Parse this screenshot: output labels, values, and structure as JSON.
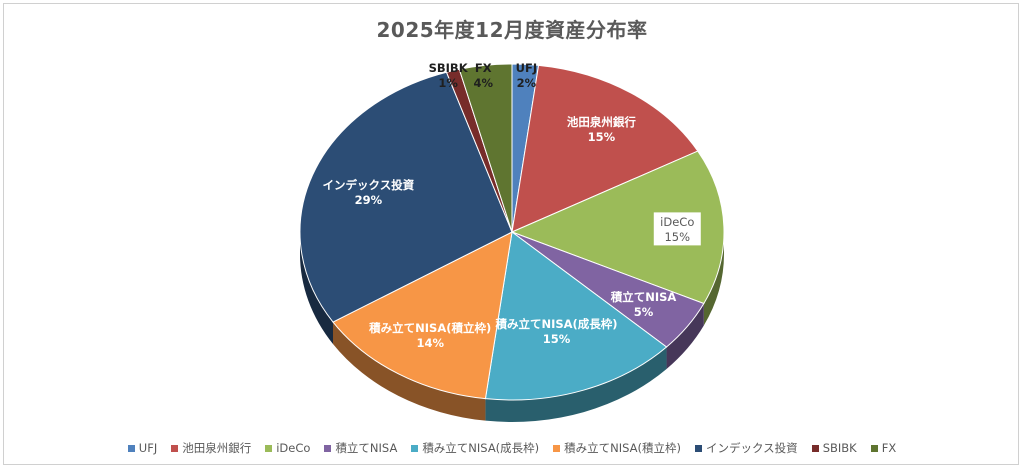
{
  "chart_data": {
    "type": "pie",
    "title": "2025年度12月度資産分布率",
    "categories": [
      "UFJ",
      "池田泉州銀行",
      "iDeCo",
      "積立てNISA",
      "積み立てNISA(成長枠)",
      "積み立てNISA(積立枠)",
      "インデックス投資",
      "SBIBK",
      "FX"
    ],
    "values": [
      2,
      15,
      15,
      5,
      15,
      14,
      29,
      1,
      4
    ],
    "labels": [
      "2%",
      "15%",
      "15%",
      "5%",
      "15%",
      "14%",
      "29%",
      "1%",
      "4%"
    ],
    "colors": [
      "#4f81bd",
      "#c0504d",
      "#9bbb59",
      "#8064a2",
      "#4bacc6",
      "#f79646",
      "#2c4d75",
      "#772c2a",
      "#5f7530"
    ],
    "legend_position": "bottom"
  }
}
